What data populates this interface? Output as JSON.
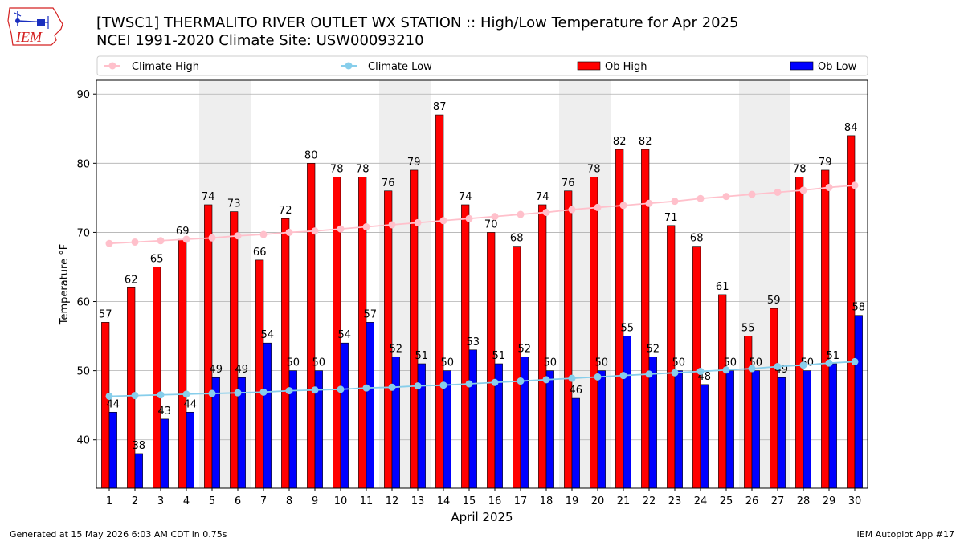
{
  "header": {
    "title_line1": "[TWSC1] THERMALITO RIVER OUTLET WX STATION :: High/Low Temperature for Apr 2025",
    "title_line2": "NCEI 1991-2020 Climate Site: USW00093210",
    "logo_text": "IEM"
  },
  "footer": {
    "generated": "Generated at 15 May 2026 6:03 AM CDT in 0.75s",
    "app": "IEM Autoplot App #17"
  },
  "colors": {
    "ob_high": "#ff0000",
    "ob_low": "#0000ff",
    "climate_high": "#ffc0cb",
    "climate_low": "#87ceeb",
    "weekend_shade": "#eeeeee",
    "logo_red": "#d42020",
    "logo_blue": "#1a2fbf"
  },
  "chart_data": {
    "type": "bar",
    "xlabel": "April 2025",
    "ylabel": "Temperature °F",
    "ylim": [
      33,
      92
    ],
    "yticks": [
      40,
      50,
      60,
      70,
      80,
      90
    ],
    "grid": "horizontal",
    "legend_placement": "top",
    "shaded_days": [
      5,
      6,
      12,
      13,
      19,
      20,
      26,
      27
    ],
    "categories": [
      "1",
      "2",
      "3",
      "4",
      "5",
      "6",
      "7",
      "8",
      "9",
      "10",
      "11",
      "12",
      "13",
      "14",
      "15",
      "16",
      "17",
      "18",
      "19",
      "20",
      "21",
      "22",
      "23",
      "24",
      "25",
      "26",
      "27",
      "28",
      "29",
      "30"
    ],
    "series": [
      {
        "name": "Ob High",
        "kind": "bar",
        "values": [
          57,
          62,
          65,
          69,
          74,
          73,
          66,
          72,
          80,
          78,
          78,
          76,
          79,
          87,
          74,
          70,
          68,
          74,
          76,
          78,
          82,
          82,
          71,
          68,
          61,
          55,
          59,
          78,
          79,
          84
        ]
      },
      {
        "name": "Ob Low",
        "kind": "bar",
        "values": [
          44,
          38,
          43,
          44,
          49,
          49,
          54,
          50,
          50,
          54,
          57,
          52,
          51,
          50,
          53,
          51,
          52,
          50,
          46,
          50,
          55,
          52,
          50,
          48,
          50,
          50,
          49,
          50,
          51,
          58
        ]
      },
      {
        "name": "Climate High",
        "kind": "line",
        "values": [
          68.4,
          68.6,
          68.8,
          69.0,
          69.2,
          69.5,
          69.7,
          70.0,
          70.2,
          70.5,
          70.8,
          71.1,
          71.4,
          71.7,
          72.0,
          72.3,
          72.6,
          72.9,
          73.3,
          73.6,
          73.9,
          74.2,
          74.5,
          74.9,
          75.2,
          75.5,
          75.8,
          76.1,
          76.5,
          76.8
        ]
      },
      {
        "name": "Climate Low",
        "kind": "line",
        "values": [
          46.3,
          46.4,
          46.5,
          46.6,
          46.7,
          46.8,
          46.9,
          47.1,
          47.2,
          47.3,
          47.5,
          47.6,
          47.8,
          47.9,
          48.1,
          48.3,
          48.5,
          48.7,
          48.9,
          49.1,
          49.3,
          49.5,
          49.7,
          49.9,
          50.1,
          50.3,
          50.6,
          50.8,
          51.1,
          51.3
        ]
      }
    ],
    "legend": [
      "Climate High",
      "Climate Low",
      "Ob High",
      "Ob Low"
    ]
  }
}
